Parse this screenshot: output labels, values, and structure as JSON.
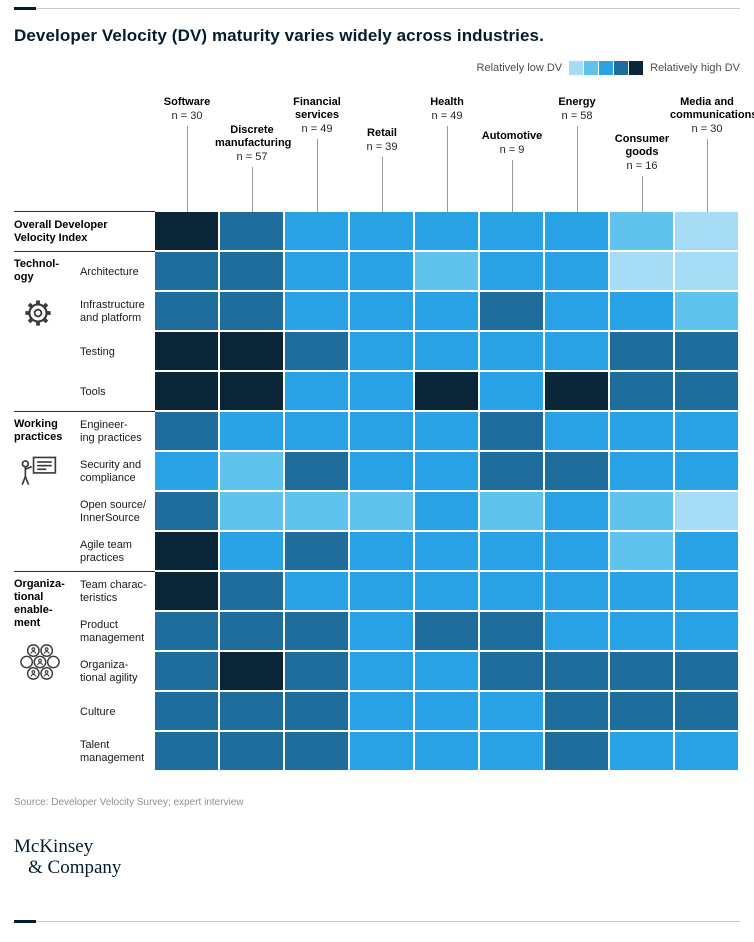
{
  "page": {
    "title": "Developer Velocity (DV) maturity varies widely across industries.",
    "source": "Source: Developer Velocity Survey; expert interview",
    "logo_line1": "McKinsey",
    "logo_line2": "& Company"
  },
  "legend": {
    "low_label": "Relatively low DV",
    "high_label": "Relatively high DV"
  },
  "chart_data": {
    "type": "heatmap",
    "title": "Developer Velocity (DV) maturity varies widely across industries.",
    "value_scale": "levels 1-5; 1 = relatively low DV (lightest), 5 = relatively high DV (darkest); values estimated from cell shading",
    "palette": [
      "#a6dcf5",
      "#5fc3ee",
      "#29a3e6",
      "#1e6d9c",
      "#0a2638"
    ],
    "columns": [
      {
        "label": "Software",
        "n": "n = 30"
      },
      {
        "label": "Discrete manufacturing",
        "n": "n = 57"
      },
      {
        "label": "Financial services",
        "n": "n = 49"
      },
      {
        "label": "Retail",
        "n": "n = 39"
      },
      {
        "label": "Health",
        "n": "n = 49"
      },
      {
        "label": "Automotive",
        "n": "n = 9"
      },
      {
        "label": "Energy",
        "n": "n = 58"
      },
      {
        "label": "Consumer goods",
        "n": "n = 16"
      },
      {
        "label": "Media and communications",
        "n": "n = 30"
      }
    ],
    "groups": [
      {
        "label": "Technol-\nogy",
        "icon": "gear-icon",
        "row_labels": [
          "Architecture",
          "Infrastructure and platform",
          "Testing",
          "Tools"
        ]
      },
      {
        "label": "Working\npractices",
        "icon": "presenter-icon",
        "row_labels": [
          "Engineering practices",
          "Security and compliance",
          "Open source/InnerSource",
          "Agile team practices"
        ]
      },
      {
        "label": "Organiza-\ntional\nenable-\nment",
        "icon": "people-network-icon",
        "row_labels": [
          "Team characteristics",
          "Product management",
          "Organizational agility",
          "Culture",
          "Talent management"
        ]
      }
    ],
    "rows": [
      {
        "label": "Overall Developer\nVelocity Index",
        "group": null
      },
      {
        "label": "Architecture",
        "group": "Technology"
      },
      {
        "label": "Infrastructure\nand platform",
        "group": "Technology"
      },
      {
        "label": "Testing",
        "group": "Technology"
      },
      {
        "label": "Tools",
        "group": "Technology"
      },
      {
        "label": "Engineer-\ning practices",
        "group": "Working practices"
      },
      {
        "label": "Security and\ncompliance",
        "group": "Working practices"
      },
      {
        "label": "Open source/\nInnerSource",
        "group": "Working practices"
      },
      {
        "label": "Agile team\npractices",
        "group": "Working practices"
      },
      {
        "label": "Team charac-\nteristics",
        "group": "Organizational enablement"
      },
      {
        "label": "Product\nmanagement",
        "group": "Organizational enablement"
      },
      {
        "label": "Organiza-\ntional agility",
        "group": "Organizational enablement"
      },
      {
        "label": "Culture",
        "group": "Organizational enablement"
      },
      {
        "label": "Talent\nmanagement",
        "group": "Organizational enablement"
      }
    ],
    "levels": [
      [
        5,
        4,
        3,
        3,
        3,
        3,
        3,
        2,
        1
      ],
      [
        4,
        4,
        3,
        3,
        2,
        3,
        3,
        1,
        1
      ],
      [
        4,
        4,
        3,
        3,
        3,
        4,
        3,
        3,
        2
      ],
      [
        5,
        5,
        4,
        3,
        3,
        3,
        3,
        4,
        4
      ],
      [
        5,
        5,
        3,
        3,
        5,
        3,
        5,
        4,
        4
      ],
      [
        4,
        3,
        3,
        3,
        3,
        4,
        3,
        3,
        3
      ],
      [
        3,
        2,
        4,
        3,
        3,
        4,
        4,
        3,
        3
      ],
      [
        4,
        2,
        2,
        2,
        3,
        2,
        3,
        2,
        1
      ],
      [
        5,
        3,
        4,
        3,
        3,
        3,
        3,
        2,
        3
      ],
      [
        5,
        4,
        3,
        3,
        3,
        3,
        3,
        3,
        3
      ],
      [
        4,
        4,
        4,
        3,
        4,
        4,
        3,
        3,
        3
      ],
      [
        4,
        5,
        4,
        3,
        3,
        4,
        4,
        4,
        4
      ],
      [
        4,
        4,
        4,
        3,
        3,
        3,
        4,
        4,
        4
      ],
      [
        4,
        4,
        4,
        3,
        3,
        3,
        4,
        3,
        3
      ]
    ]
  }
}
